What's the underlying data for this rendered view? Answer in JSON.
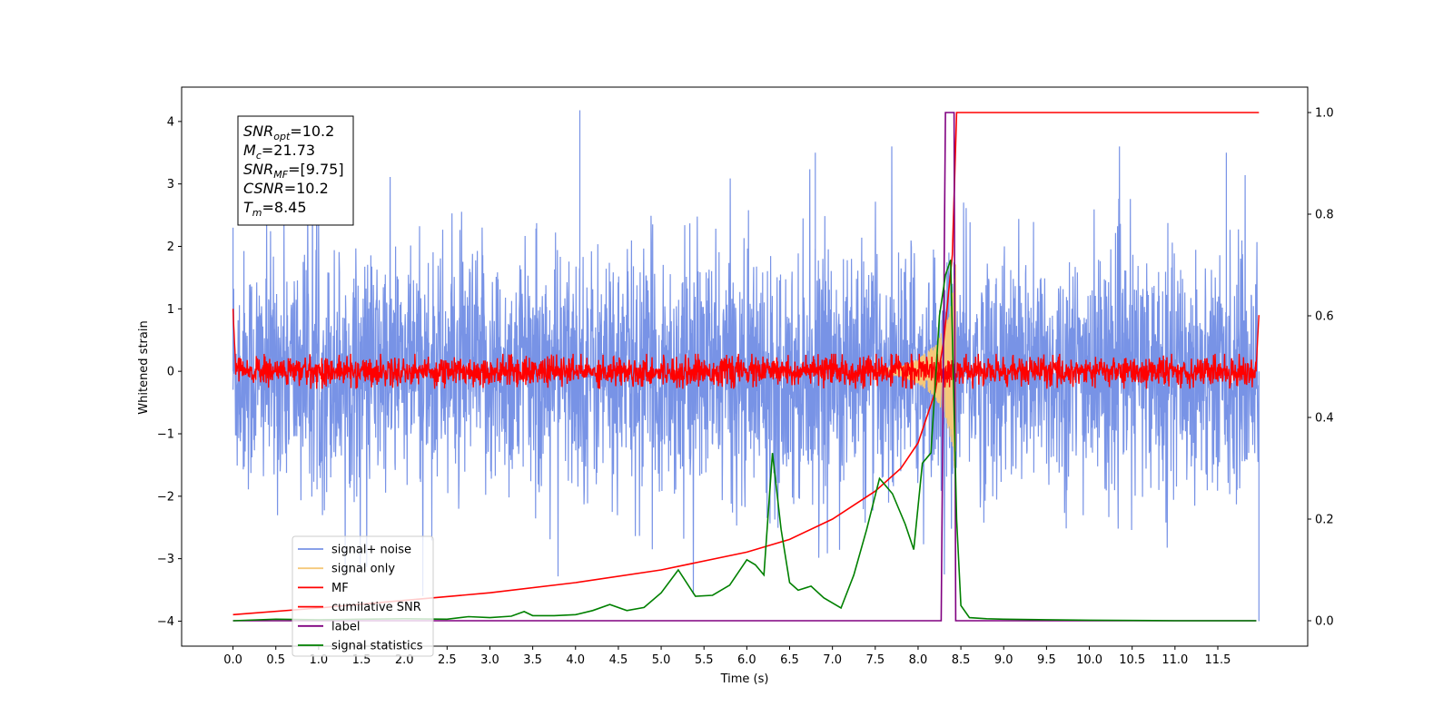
{
  "chart_data": {
    "type": "line",
    "xlabel": "Time (s)",
    "ylabel_left": "Whitened strain",
    "xlim": [
      -0.6,
      12.55
    ],
    "ylim_left": [
      -4.4,
      4.55
    ],
    "ylim_right": [
      -0.05,
      1.05
    ],
    "x_ticks": [
      "0.0",
      "0.5",
      "1.0",
      "1.5",
      "2.0",
      "2.5",
      "3.0",
      "3.5",
      "4.0",
      "4.5",
      "5.0",
      "5.5",
      "6.0",
      "6.5",
      "7.0",
      "7.5",
      "8.0",
      "8.5",
      "9.0",
      "9.5",
      "10.0",
      "10.5",
      "11.0",
      "11.5"
    ],
    "y_ticks_left": [
      "4",
      "3",
      "2",
      "1",
      "0",
      "−1",
      "−2",
      "−3",
      "−4"
    ],
    "y_ticks_right": [
      "1.0",
      "0.8",
      "0.6",
      "0.4",
      "0.2",
      "0.0"
    ],
    "info_box": {
      "lines": [
        {
          "label": "SNR",
          "sub": "opt",
          "value": "=10.2"
        },
        {
          "label": "M",
          "sub": "c",
          "value": "=21.73"
        },
        {
          "label": "SNR",
          "sub": "MF",
          "value": "=[9.75]"
        },
        {
          "label": "CSNR",
          "sub": "",
          "value": "=10.2"
        },
        {
          "label": "T",
          "sub": "m",
          "value": "=8.45"
        }
      ]
    },
    "legend": {
      "placement": "lower-left",
      "entries": [
        {
          "name": "signal+ noise",
          "color": "#7893e6"
        },
        {
          "name": "signal only",
          "color": "#f5c87a"
        },
        {
          "name": "MF",
          "color": "#ff0000"
        },
        {
          "name": "cumilative SNR",
          "color": "#ff0000"
        },
        {
          "name": "label",
          "color": "#800080"
        },
        {
          "name": "signal statistics",
          "color": "#008000"
        }
      ]
    },
    "series": [
      {
        "name": "signal+ noise",
        "axis": "left",
        "x_range": [
          0.0,
          11.98
        ],
        "description_values": {
          "noise_sigma": 1.0,
          "min": -4.0,
          "max": 4.18,
          "peaks": [
            [
              0.0,
              2.3
            ],
            [
              4.05,
              4.18
            ],
            [
              6.8,
              3.5
            ],
            [
              11.6,
              3.5
            ],
            [
              11.98,
              -4.0
            ]
          ]
        }
      },
      {
        "name": "signal only",
        "axis": "left",
        "envelope": [
          [
            7.4,
            0.02
          ],
          [
            7.8,
            0.08
          ],
          [
            8.0,
            0.2
          ],
          [
            8.2,
            0.42
          ],
          [
            8.32,
            0.75
          ],
          [
            8.4,
            1.2
          ],
          [
            8.44,
            1.8
          ]
        ]
      },
      {
        "name": "MF",
        "axis": "left",
        "x_range": [
          0.0,
          11.98
        ],
        "edges": [
          [
            0.0,
            1.0
          ],
          [
            0.03,
            0.1
          ],
          [
            11.95,
            0.1
          ],
          [
            11.98,
            0.9
          ]
        ],
        "band_amplitude": 0.28
      },
      {
        "name": "cumilative SNR",
        "axis": "right",
        "x": [
          0.0,
          1.0,
          2.0,
          3.0,
          4.0,
          5.0,
          6.0,
          6.5,
          7.0,
          7.5,
          7.8,
          8.0,
          8.2,
          8.3,
          8.4,
          8.45,
          9.0,
          10.0,
          11.0,
          11.98
        ],
        "values": [
          0.012,
          0.025,
          0.04,
          0.055,
          0.075,
          0.1,
          0.135,
          0.16,
          0.2,
          0.255,
          0.3,
          0.35,
          0.45,
          0.55,
          0.72,
          1.0,
          1.0,
          1.0,
          1.0,
          1.0
        ]
      },
      {
        "name": "label",
        "axis": "right",
        "x": [
          0.0,
          8.27,
          8.32,
          8.42,
          8.44,
          8.47,
          11.95
        ],
        "values": [
          0.0,
          0.0,
          1.0,
          1.0,
          0.0,
          0.0,
          0.0
        ]
      },
      {
        "name": "signal statistics",
        "axis": "right",
        "x": [
          0.0,
          0.5,
          1.0,
          1.5,
          2.0,
          2.5,
          2.75,
          3.0,
          3.25,
          3.4,
          3.5,
          3.75,
          4.0,
          4.2,
          4.4,
          4.6,
          4.8,
          5.0,
          5.2,
          5.4,
          5.6,
          5.8,
          6.0,
          6.1,
          6.2,
          6.3,
          6.4,
          6.5,
          6.6,
          6.75,
          6.9,
          7.1,
          7.25,
          7.4,
          7.55,
          7.7,
          7.85,
          7.95,
          8.05,
          8.15,
          8.25,
          8.32,
          8.38,
          8.45,
          8.5,
          8.6,
          8.8,
          9.0,
          9.5,
          10.0,
          11.0,
          11.95
        ],
        "values": [
          0.0,
          0.003,
          0.002,
          0.003,
          0.004,
          0.003,
          0.008,
          0.006,
          0.009,
          0.018,
          0.01,
          0.01,
          0.012,
          0.02,
          0.032,
          0.02,
          0.026,
          0.055,
          0.1,
          0.048,
          0.05,
          0.07,
          0.12,
          0.11,
          0.09,
          0.33,
          0.18,
          0.075,
          0.06,
          0.068,
          0.045,
          0.025,
          0.09,
          0.18,
          0.28,
          0.25,
          0.19,
          0.14,
          0.31,
          0.33,
          0.6,
          0.68,
          0.71,
          0.2,
          0.03,
          0.006,
          0.004,
          0.003,
          0.002,
          0.001,
          0.0,
          0.0
        ]
      }
    ]
  }
}
